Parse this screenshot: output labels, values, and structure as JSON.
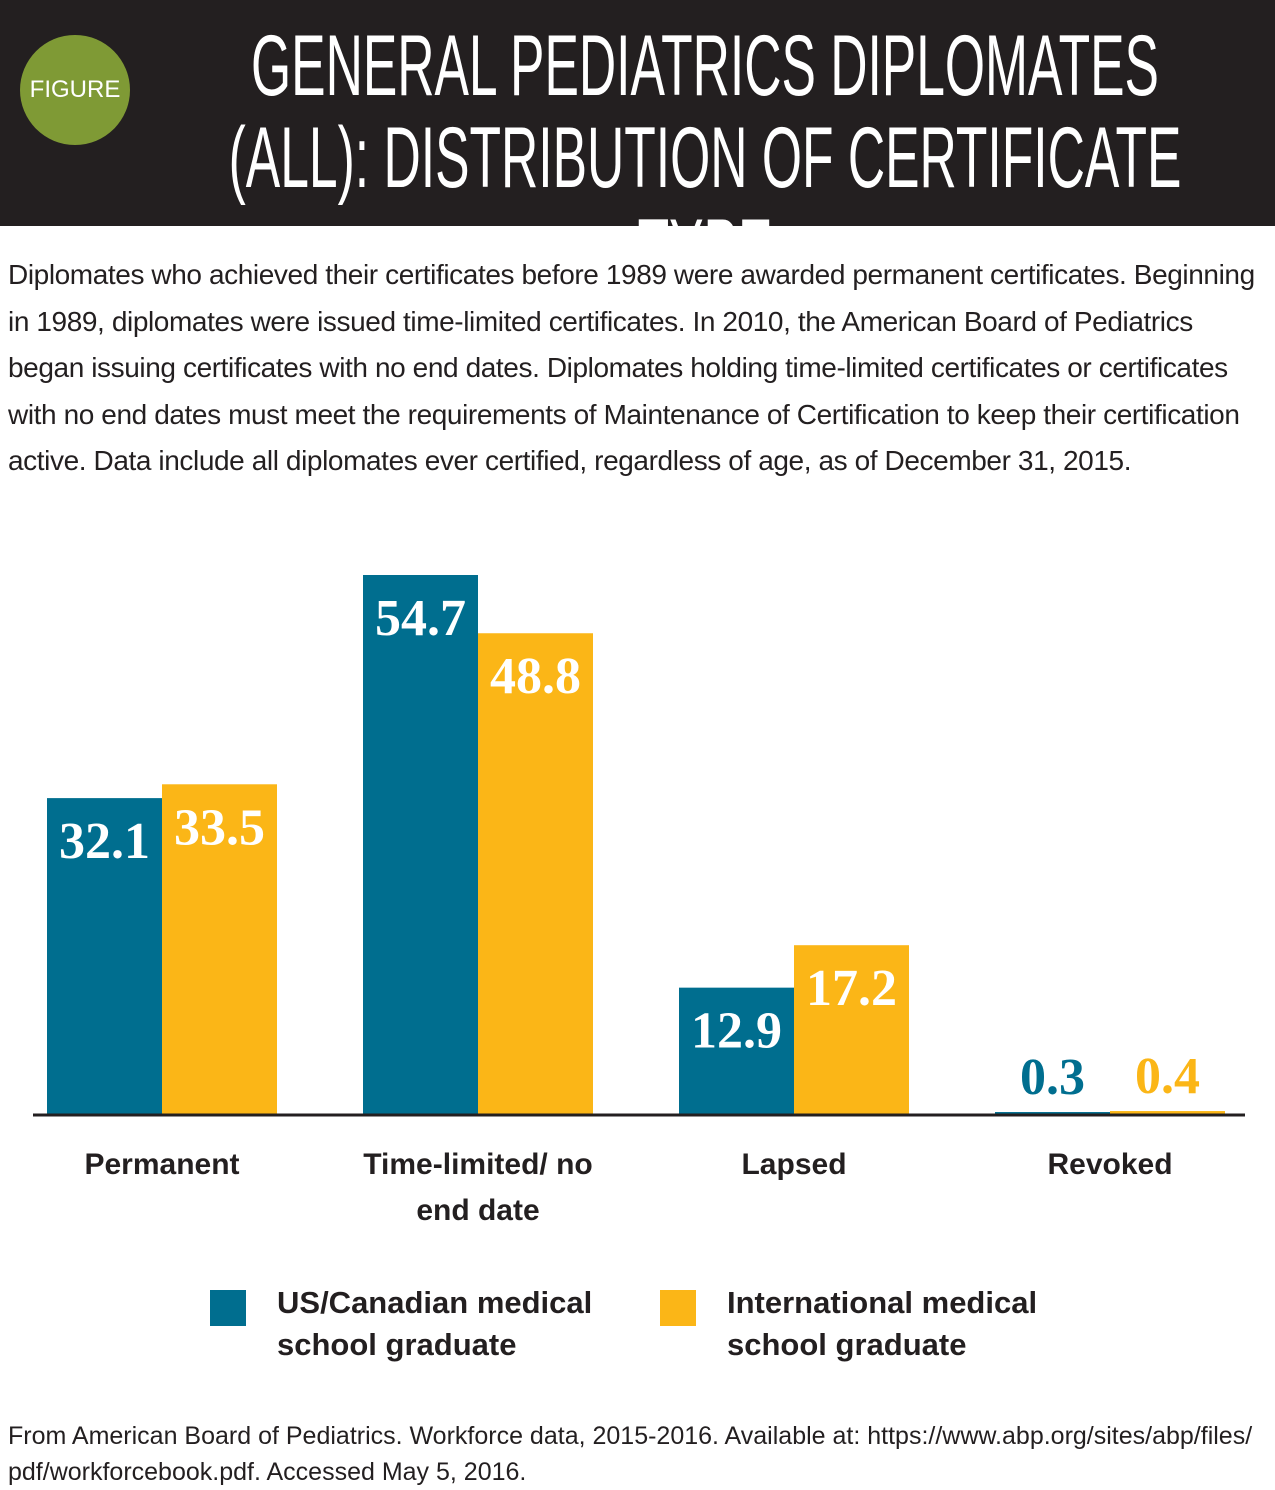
{
  "header": {
    "badge": "FIGURE",
    "title": "GENERAL PEDIATRICS DIPLOMATES (ALL): DISTRIBUTION OF CERTIFICATE TYPE"
  },
  "description": "Diplomates who achieved their certificates before 1989 were awarded permanent certificates. Beginning in 1989, diplomates were issued time-limited certificates. In 2010, the American Board of Pediatrics began issuing certificates with no end dates. Diplomates holding time-limited certificates or certificates with no end dates must meet the requirements of Maintenance of Certification to keep their certification active. Data include all diplomates ever certified, regardless of age, as of December 31, 2015.",
  "chart_data": {
    "type": "bar",
    "categories": [
      "Permanent",
      "Time-limited/ no end date",
      "Lapsed",
      "Revoked"
    ],
    "series": [
      {
        "name": "US/Canadian medical school graduate",
        "color": "#006e8f",
        "values": [
          32.1,
          54.7,
          12.9,
          0.3
        ]
      },
      {
        "name": "International medical school graduate",
        "color": "#fbb617",
        "values": [
          33.5,
          48.8,
          17.2,
          0.4
        ]
      }
    ]
  },
  "source": "From American Board of Pediatrics. Workforce data, 2015-2016. Available at: https://www.abp.org/sites/abp/files/pdf/workforcebook.pdf. Accessed May 5, 2016."
}
